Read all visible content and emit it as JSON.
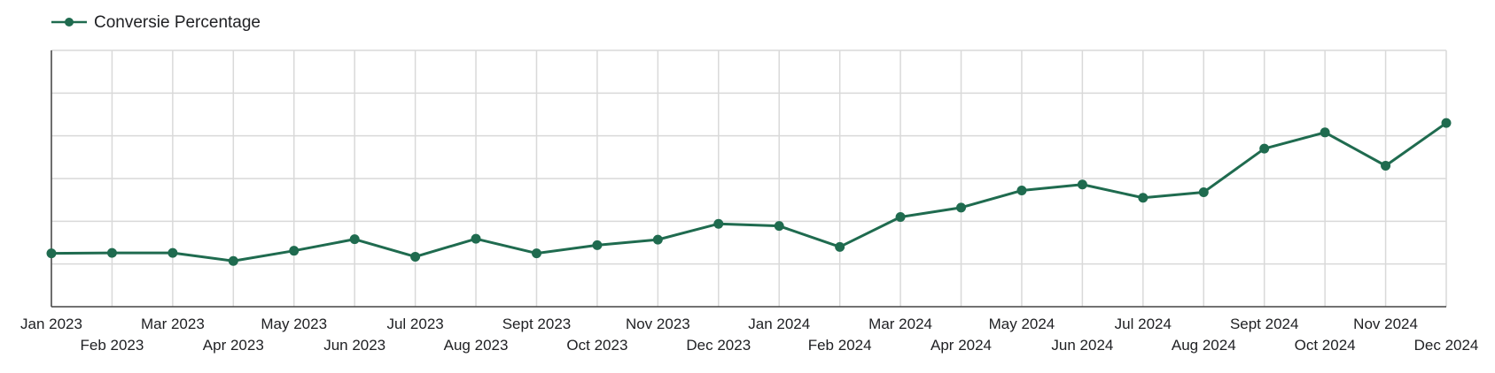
{
  "chart_data": {
    "type": "line",
    "categories": [
      "Jan 2023",
      "Feb 2023",
      "Mar 2023",
      "Apr 2023",
      "May 2023",
      "Jun 2023",
      "Jul 2023",
      "Aug 2023",
      "Sept 2023",
      "Oct 2023",
      "Nov 2023",
      "Dec 2023",
      "Jan 2024",
      "Feb 2024",
      "Mar 2024",
      "Apr 2024",
      "May 2024",
      "Jun 2024",
      "Jul 2024",
      "Aug 2024",
      "Sept 2024",
      "Oct 2024",
      "Nov 2024",
      "Dec 2024"
    ],
    "series": [
      {
        "name": "Conversie Percentage",
        "color": "#1f6b4f",
        "values": [
          1.25,
          1.26,
          1.26,
          1.07,
          1.31,
          1.58,
          1.17,
          1.59,
          1.25,
          1.44,
          1.57,
          1.94,
          1.89,
          1.4,
          2.1,
          2.32,
          2.72,
          2.86,
          2.55,
          2.68,
          3.7,
          4.08,
          3.3,
          4.3
        ]
      }
    ],
    "ylim": [
      0,
      6
    ],
    "y_gridlines": [
      0,
      1,
      2,
      3,
      4,
      5,
      6
    ],
    "y_tick_labels_visible": false,
    "grid": true,
    "legend_position": "top-left",
    "xlabel": "",
    "ylabel": "",
    "title": ""
  }
}
